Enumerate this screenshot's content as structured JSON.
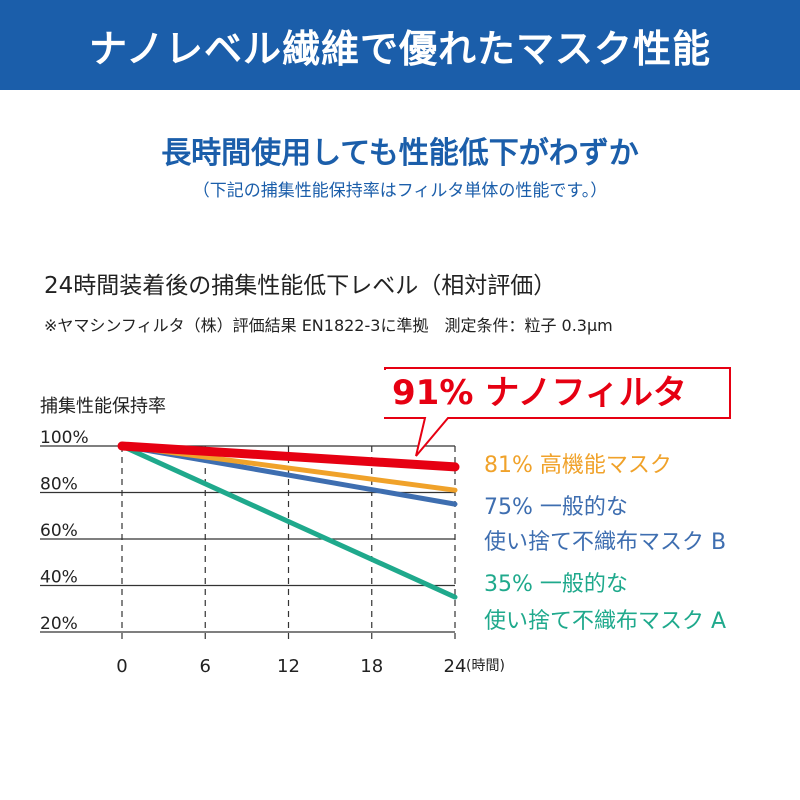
{
  "header": {
    "title": "ナノレベル繊維で優れたマスク性能"
  },
  "headline": "長時間使用しても性能低下がわずか",
  "subnote": "（下記の捕集性能保持率はフィルタ単体の性能です。）",
  "chart_heading": "24時間装着後の捕集性能低下レベル（相対評価）",
  "chart_note": "※ヤマシンフィルタ（株）評価結果 EN1822-3に準拠　測定条件：粒子 0.3μm",
  "chart_data": {
    "type": "line",
    "title": "24時間装着後の捕集性能低下レベル（相対評価）",
    "ylabel": "捕集性能保持率",
    "xlabel": "(時間)",
    "x": [
      0,
      24
    ],
    "xticks": [
      "0",
      "6",
      "12",
      "18",
      "24"
    ],
    "xtick_values": [
      0,
      6,
      12,
      18,
      24
    ],
    "yticks": [
      "100%",
      "80%",
      "60%",
      "40%",
      "20%"
    ],
    "ytick_values": [
      100,
      80,
      60,
      40,
      20
    ],
    "xlim": [
      0,
      24
    ],
    "ylim": [
      20,
      100
    ],
    "series": [
      {
        "name": "一般的な使い捨て不織布マスク A",
        "label": "35% 一般的な",
        "label2": "使い捨て不織布マスク A",
        "values": [
          100,
          35
        ],
        "color": "#1fa98c"
      },
      {
        "name": "一般的な使い捨て不織布マスク B",
        "label": "75% 一般的な",
        "label2": "使い捨て不織布マスク B",
        "values": [
          100,
          75
        ],
        "color": "#3e6eb0"
      },
      {
        "name": "高機能マスク",
        "label": "81% 高機能マスク",
        "label2": "",
        "values": [
          100,
          81
        ],
        "color": "#f0a22a"
      },
      {
        "name": "ナノフィルタ",
        "label": "91% ナノフィルタ",
        "label2": "",
        "values": [
          100,
          91
        ],
        "color": "#e60012"
      }
    ]
  }
}
